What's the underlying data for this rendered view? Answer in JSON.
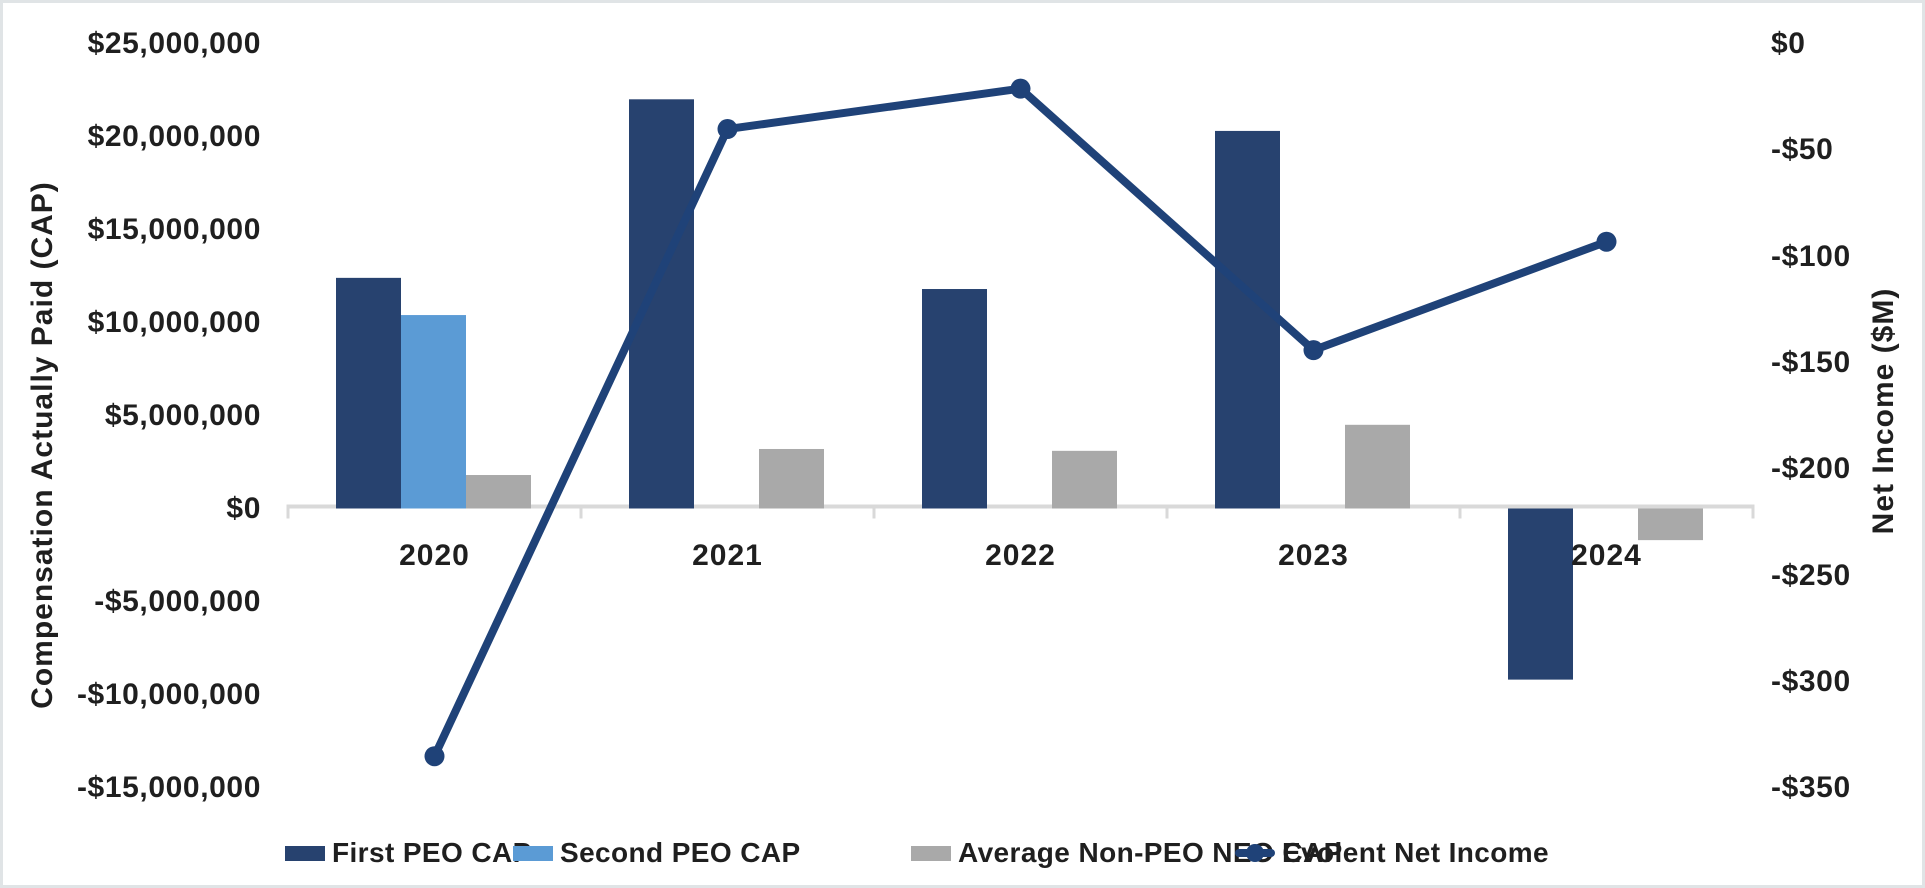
{
  "chart_data": {
    "type": "bar-line-combo",
    "categories": [
      "2020",
      "2021",
      "2022",
      "2023",
      "2024"
    ],
    "series": [
      {
        "name": "First PEO CAP",
        "type": "bar",
        "axis": "left",
        "color": "#27426f",
        "values": [
          12400000,
          22000000,
          11800000,
          20300000,
          -9200000
        ]
      },
      {
        "name": "Second PEO CAP",
        "type": "bar",
        "axis": "left",
        "color": "#5b9bd5",
        "values": [
          10400000,
          null,
          null,
          null,
          null
        ]
      },
      {
        "name": "Average Non-PEO NEO CAP",
        "type": "bar",
        "axis": "left",
        "color": "#a9a9a9",
        "values": [
          1800000,
          3200000,
          3100000,
          4500000,
          -1700000
        ]
      },
      {
        "name": "Evolent Net Income",
        "type": "line",
        "axis": "right",
        "color": "#1f4278",
        "values": [
          -335,
          -40,
          -21,
          -144,
          -93
        ]
      }
    ],
    "left_axis": {
      "title": "Compensation Actually Paid (CAP)",
      "range": [
        -15000000,
        25000000
      ],
      "ticks": [
        {
          "label": "$25,000,000",
          "value": 25000000
        },
        {
          "label": "$20,000,000",
          "value": 20000000
        },
        {
          "label": "$15,000,000",
          "value": 15000000
        },
        {
          "label": "$10,000,000",
          "value": 10000000
        },
        {
          "label": "$5,000,000",
          "value": 5000000
        },
        {
          "label": "$0",
          "value": 0
        },
        {
          "label": "-$5,000,000",
          "value": -5000000
        },
        {
          "label": "-$10,000,000",
          "value": -10000000
        },
        {
          "label": "-$15,000,000",
          "value": -15000000
        }
      ]
    },
    "right_axis": {
      "title": "Net Income ($M)",
      "range": [
        -350,
        0
      ],
      "ticks": [
        {
          "label": "$0",
          "value": 0
        },
        {
          "label": "-$50",
          "value": -50
        },
        {
          "label": "-$100",
          "value": -100
        },
        {
          "label": "-$150",
          "value": -150
        },
        {
          "label": "-$200",
          "value": -200
        },
        {
          "label": "-$250",
          "value": -250
        },
        {
          "label": "-$300",
          "value": -300
        },
        {
          "label": "-$350",
          "value": -350
        }
      ]
    },
    "legend_labels": [
      "First PEO CAP",
      "Second PEO CAP",
      "Average Non-PEO NEO CAP",
      "Evolent Net Income"
    ],
    "grid": false,
    "legend_position": "bottom",
    "colors": {
      "bar_dark_navy": "#27426f",
      "bar_light_blue": "#5b9bd5",
      "bar_gray": "#a9a9a9",
      "line_navy": "#1f4278",
      "axis_gray": "#d9d9d9",
      "text": "#1f1f1f"
    }
  }
}
